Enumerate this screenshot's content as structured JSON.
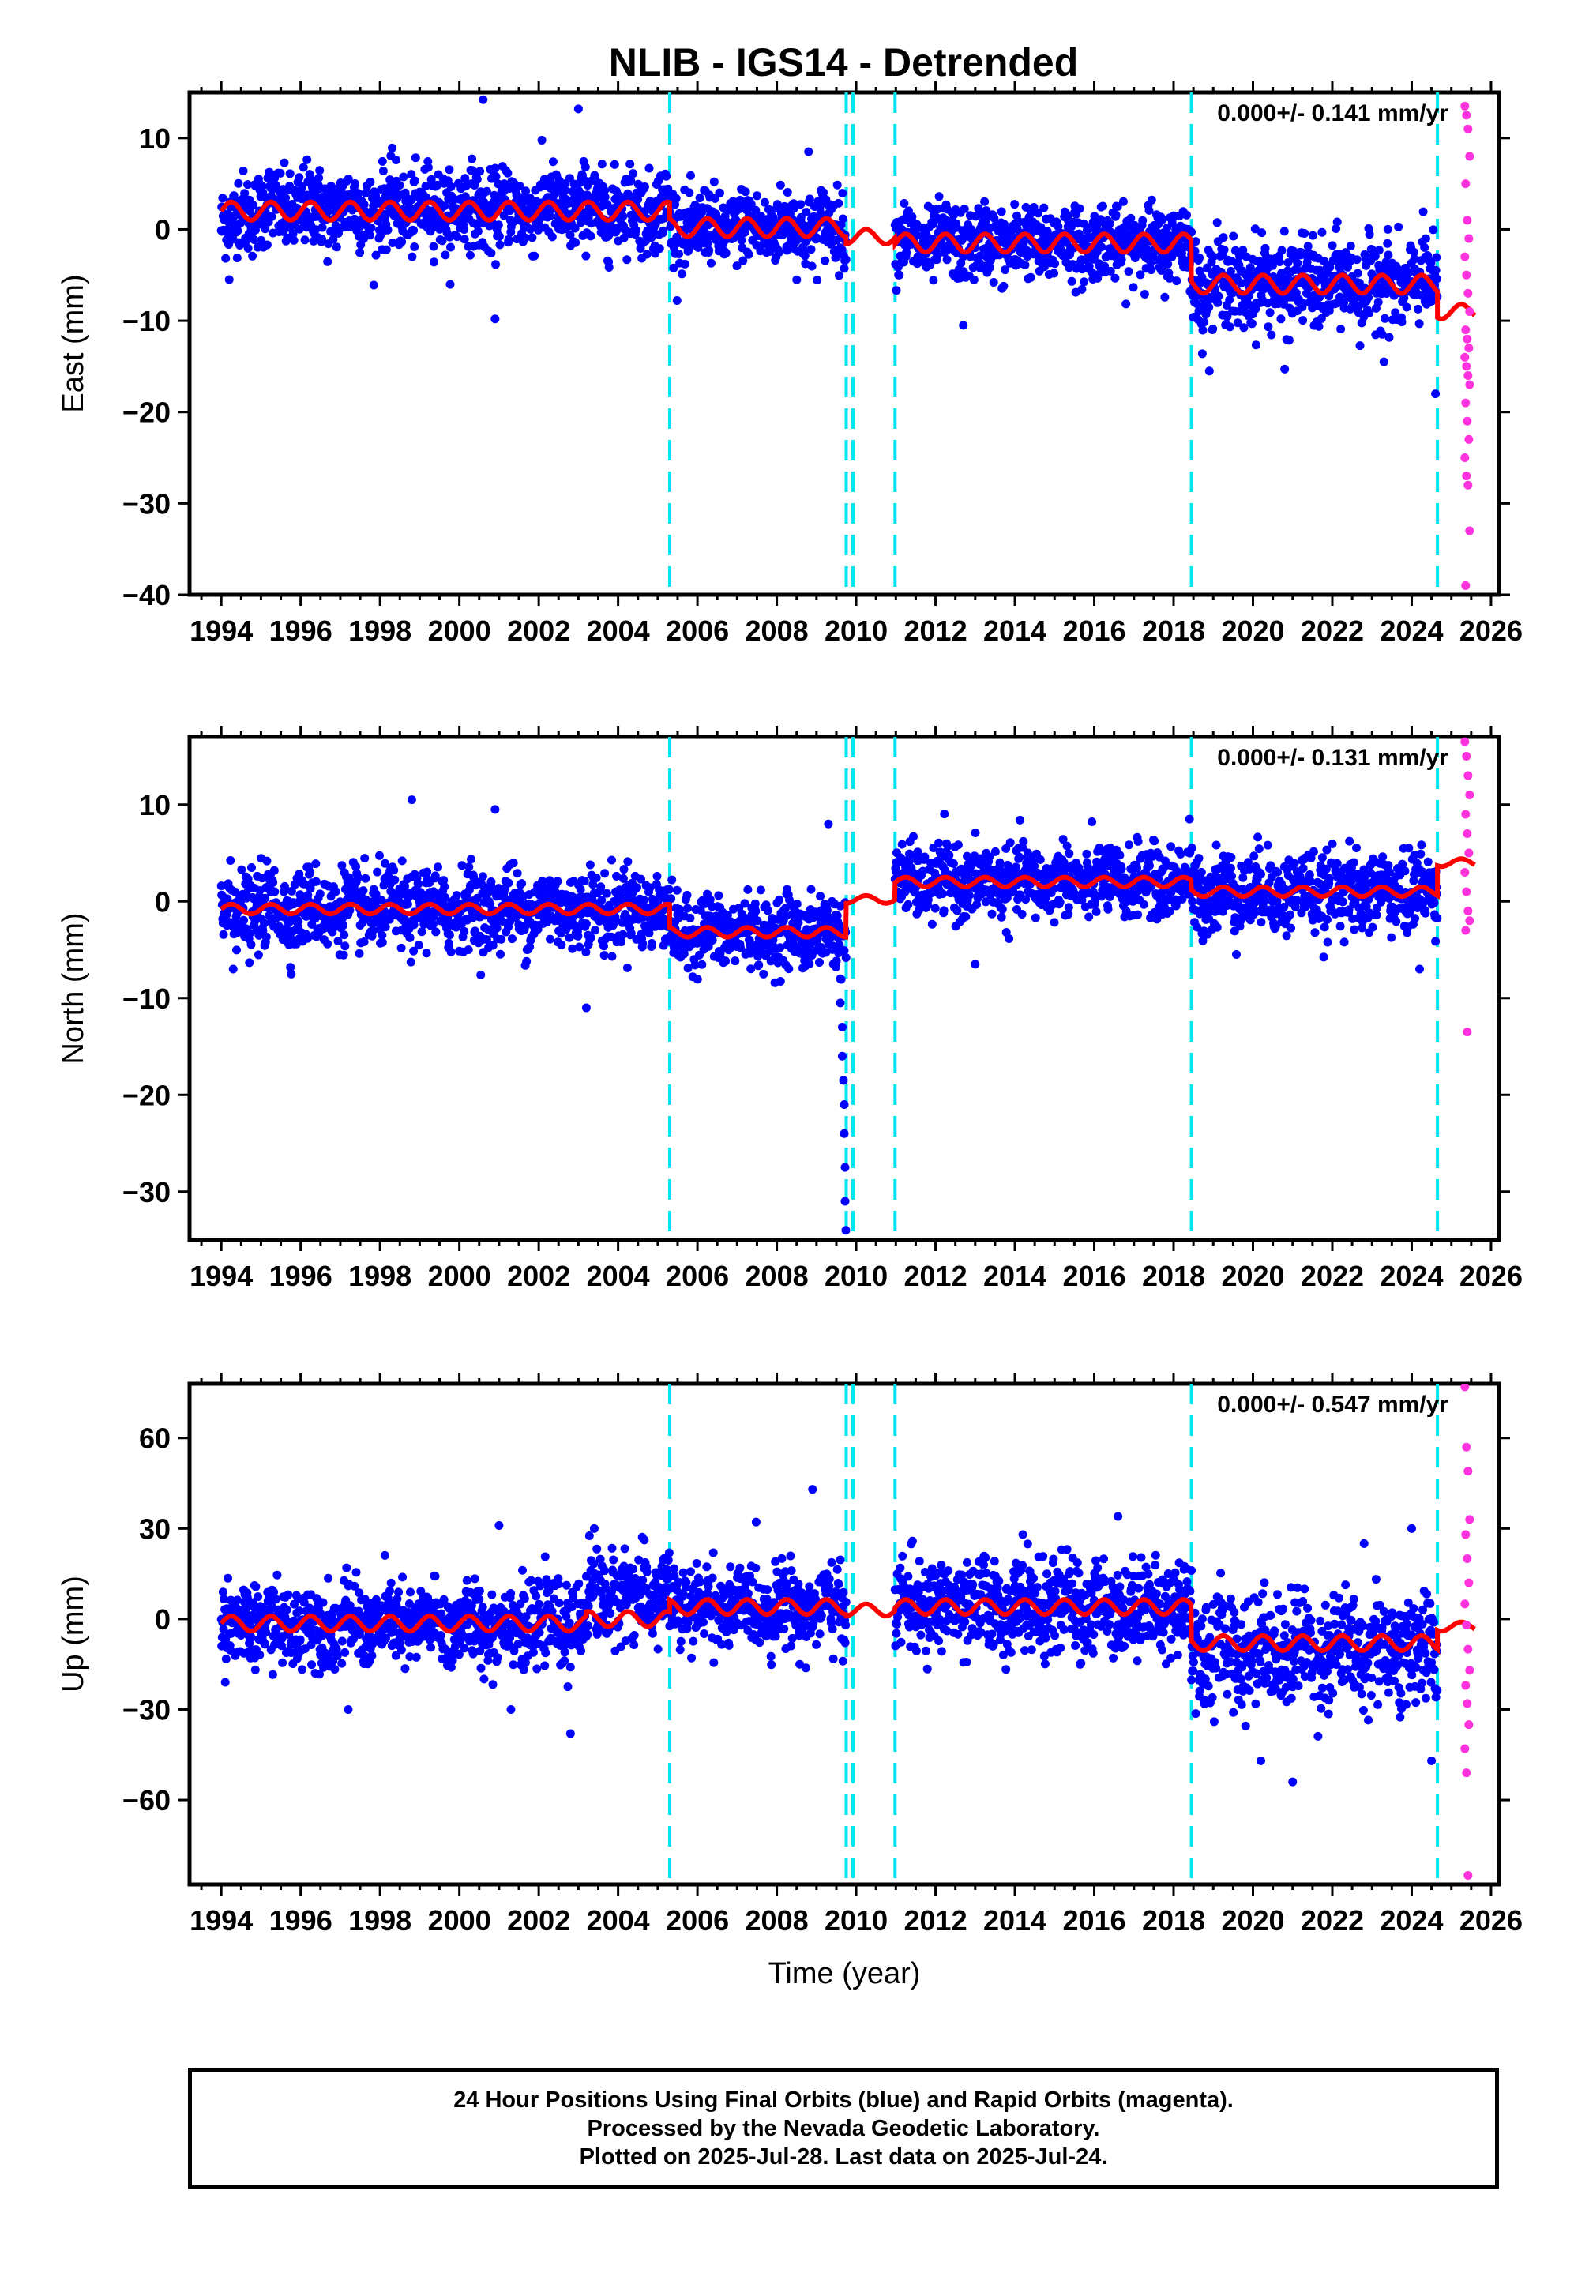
{
  "title": "NLIB - IGS14 - Detrended",
  "footer": {
    "lines": [
      "24 Hour Positions Using Final Orbits (blue) and Rapid Orbits (magenta).",
      "Processed by the Nevada Geodetic Laboratory.",
      "Plotted on 2025-Jul-28. Last data on 2025-Jul-24."
    ]
  },
  "colors": {
    "final": "#0000ff",
    "rapid": "#ff33dd",
    "model": "#ff0000",
    "events": "#00e5ee"
  },
  "chart_data": [
    {
      "type": "scatter",
      "panel": "east",
      "title": "NLIB - IGS14 - Detrended",
      "xlabel": "",
      "ylabel": "East (mm)",
      "xlim": [
        1993.2,
        2026.2
      ],
      "ylim": [
        -40,
        15
      ],
      "xticks": [
        1994,
        1996,
        1998,
        2000,
        2002,
        2004,
        2006,
        2008,
        2010,
        2012,
        2014,
        2016,
        2018,
        2020,
        2022,
        2024,
        2026
      ],
      "yticks": [
        10,
        0,
        -10,
        -20,
        -30,
        -40
      ],
      "annotation": "0.000+/- 0.141 mm/yr",
      "event_lines": [
        2005.3,
        2009.75,
        2009.92,
        2010.98,
        2018.45,
        2024.65
      ],
      "model_segments": [
        {
          "from": 1994.0,
          "to": 2005.3,
          "level": 2.0,
          "amp": 1.0
        },
        {
          "from": 2005.3,
          "to": 2009.75,
          "level": 0.2,
          "amp": 1.0
        },
        {
          "from": 2009.75,
          "to": 2010.98,
          "level": -0.8,
          "amp": 0.8
        },
        {
          "from": 2010.98,
          "to": 2018.45,
          "level": -1.5,
          "amp": 1.0
        },
        {
          "from": 2018.45,
          "to": 2024.65,
          "level": -6.0,
          "amp": 1.0
        },
        {
          "from": 2024.65,
          "to": 2025.6,
          "level": -9.0,
          "amp": 0.8
        }
      ],
      "final_segments": [
        {
          "from": 1994.0,
          "to": 1994.4,
          "level": 0.5,
          "sigma": 2.0
        },
        {
          "from": 1994.4,
          "to": 2005.3,
          "level": 2.2,
          "sigma": 2.2
        },
        {
          "from": 2005.3,
          "to": 2009.75,
          "level": 0.2,
          "sigma": 2.0
        },
        {
          "from": 2010.98,
          "to": 2018.45,
          "level": -1.5,
          "sigma": 2.0
        },
        {
          "from": 2018.45,
          "to": 2024.65,
          "level": -6.0,
          "sigma": 2.4
        }
      ],
      "outliers": [
        [
          1994.2,
          -5.5
        ],
        [
          2000.9,
          -9.8
        ],
        [
          2000.6,
          14.2
        ],
        [
          2003.0,
          13.2
        ],
        [
          2008.8,
          8.5
        ],
        [
          2012.7,
          -10.5
        ],
        [
          2020.8,
          -15.3
        ],
        [
          2023.3,
          -14.5
        ],
        [
          2024.6,
          -18.0
        ]
      ],
      "rapid": [
        [
          2025.4,
          13.5
        ],
        [
          2025.4,
          12.5
        ],
        [
          2025.4,
          11
        ],
        [
          2025.4,
          8
        ],
        [
          2025.4,
          5
        ],
        [
          2025.4,
          1
        ],
        [
          2025.4,
          -1
        ],
        [
          2025.4,
          -3
        ],
        [
          2025.4,
          -5
        ],
        [
          2025.4,
          -7
        ],
        [
          2025.4,
          -9
        ],
        [
          2025.4,
          -11
        ],
        [
          2025.4,
          -12
        ],
        [
          2025.4,
          -13
        ],
        [
          2025.4,
          -14
        ],
        [
          2025.4,
          -15
        ],
        [
          2025.4,
          -16
        ],
        [
          2025.4,
          -17
        ],
        [
          2025.4,
          -19
        ],
        [
          2025.4,
          -21
        ],
        [
          2025.4,
          -23
        ],
        [
          2025.4,
          -25
        ],
        [
          2025.4,
          -27
        ],
        [
          2025.4,
          -28
        ],
        [
          2025.4,
          -33
        ],
        [
          2025.4,
          -39
        ]
      ]
    },
    {
      "type": "scatter",
      "panel": "north",
      "title": "",
      "xlabel": "",
      "ylabel": "North (mm)",
      "xlim": [
        1993.2,
        2026.2
      ],
      "ylim": [
        -35,
        17
      ],
      "xticks": [
        1994,
        1996,
        1998,
        2000,
        2002,
        2004,
        2006,
        2008,
        2010,
        2012,
        2014,
        2016,
        2018,
        2020,
        2022,
        2024,
        2026
      ],
      "yticks": [
        10,
        0,
        -10,
        -20,
        -30
      ],
      "annotation": "0.000+/- 0.131 mm/yr",
      "event_lines": [
        2005.3,
        2009.75,
        2009.92,
        2010.98,
        2018.45,
        2024.65
      ],
      "model_segments": [
        {
          "from": 1994.0,
          "to": 2005.3,
          "level": -0.8,
          "amp": 0.5
        },
        {
          "from": 2005.3,
          "to": 2009.75,
          "level": -3.2,
          "amp": 0.5
        },
        {
          "from": 2009.75,
          "to": 2010.98,
          "level": 0.2,
          "amp": 0.4
        },
        {
          "from": 2010.98,
          "to": 2018.45,
          "level": 2.0,
          "amp": 0.5
        },
        {
          "from": 2018.45,
          "to": 2024.65,
          "level": 1.0,
          "amp": 0.5
        },
        {
          "from": 2024.65,
          "to": 2025.6,
          "level": 4.0,
          "amp": 0.4
        }
      ],
      "final_segments": [
        {
          "from": 1994.0,
          "to": 1994.4,
          "level": -1.0,
          "sigma": 2.0
        },
        {
          "from": 1994.4,
          "to": 2005.3,
          "level": -0.8,
          "sigma": 2.0
        },
        {
          "from": 2005.3,
          "to": 2009.75,
          "level": -3.2,
          "sigma": 1.8
        },
        {
          "from": 2010.98,
          "to": 2018.45,
          "level": 2.0,
          "sigma": 1.8
        },
        {
          "from": 2018.45,
          "to": 2024.65,
          "level": 1.0,
          "sigma": 2.0
        }
      ],
      "outliers": [
        [
          1994.3,
          -7.0
        ],
        [
          1998.8,
          10.5
        ],
        [
          2000.9,
          9.5
        ],
        [
          2003.2,
          -11.0
        ],
        [
          2009.3,
          8.0
        ],
        [
          2009.6,
          -8.0
        ],
        [
          2009.6,
          -10.5
        ],
        [
          2009.65,
          -13.0
        ],
        [
          2009.65,
          -16.0
        ],
        [
          2009.68,
          -18.5
        ],
        [
          2009.7,
          -21.0
        ],
        [
          2009.7,
          -24.0
        ],
        [
          2009.72,
          -27.5
        ],
        [
          2009.72,
          -31.0
        ],
        [
          2009.74,
          -34.0
        ],
        [
          2013.0,
          -6.5
        ],
        [
          2018.4,
          8.5
        ],
        [
          2024.2,
          -7.0
        ]
      ],
      "rapid": [
        [
          2025.4,
          16.5
        ],
        [
          2025.4,
          15
        ],
        [
          2025.4,
          13
        ],
        [
          2025.4,
          11
        ],
        [
          2025.4,
          9
        ],
        [
          2025.4,
          7
        ],
        [
          2025.4,
          5
        ],
        [
          2025.4,
          3
        ],
        [
          2025.4,
          1
        ],
        [
          2025.4,
          -1
        ],
        [
          2025.4,
          -2
        ],
        [
          2025.4,
          -3
        ],
        [
          2025.4,
          -13.5
        ]
      ]
    },
    {
      "type": "scatter",
      "panel": "up",
      "title": "",
      "xlabel": "Time (year)",
      "ylabel": "Up (mm)",
      "xlim": [
        1993.2,
        2026.2
      ],
      "ylim": [
        -88,
        78
      ],
      "xticks": [
        1994,
        1996,
        1998,
        2000,
        2002,
        2004,
        2006,
        2008,
        2010,
        2012,
        2014,
        2016,
        2018,
        2020,
        2022,
        2024,
        2026
      ],
      "yticks": [
        60,
        30,
        0,
        -30,
        -60
      ],
      "annotation": "0.000+/- 0.547 mm/yr",
      "event_lines": [
        2005.3,
        2009.75,
        2009.92,
        2010.98,
        2018.45,
        2024.65
      ],
      "model_segments": [
        {
          "from": 1994.0,
          "to": 2003.2,
          "level": -1.5,
          "amp": 2.5
        },
        {
          "from": 2003.2,
          "to": 2005.3,
          "level": 0.0,
          "amp": 2.5
        },
        {
          "from": 2005.3,
          "to": 2009.75,
          "level": 4.0,
          "amp": 2.5
        },
        {
          "from": 2009.75,
          "to": 2010.98,
          "level": 3.0,
          "amp": 2.0
        },
        {
          "from": 2010.98,
          "to": 2018.45,
          "level": 4.0,
          "amp": 2.5
        },
        {
          "from": 2018.45,
          "to": 2024.65,
          "level": -8.0,
          "amp": 2.5
        },
        {
          "from": 2024.65,
          "to": 2025.6,
          "level": -2.5,
          "amp": 1.5
        }
      ],
      "final_segments": [
        {
          "from": 1994.0,
          "to": 2003.2,
          "level": -2.0,
          "sigma": 6.5
        },
        {
          "from": 2003.2,
          "to": 2005.3,
          "level": 8.0,
          "sigma": 7.5
        },
        {
          "from": 2005.3,
          "to": 2009.75,
          "level": 4.0,
          "sigma": 6.5
        },
        {
          "from": 2010.98,
          "to": 2018.45,
          "level": 4.0,
          "sigma": 7.5
        },
        {
          "from": 2018.45,
          "to": 2024.65,
          "level": -10.0,
          "sigma": 9.0
        }
      ],
      "outliers": [
        [
          1997.2,
          -30.0
        ],
        [
          2001.3,
          -30.0
        ],
        [
          2001.0,
          31.0
        ],
        [
          2002.8,
          -38.0
        ],
        [
          2003.4,
          30.0
        ],
        [
          2008.9,
          43.0
        ],
        [
          2014.2,
          28.0
        ],
        [
          2016.6,
          34.0
        ],
        [
          2020.2,
          -47.0
        ],
        [
          2021.0,
          -54.0
        ],
        [
          2022.8,
          25.0
        ],
        [
          2024.0,
          30.0
        ],
        [
          2024.5,
          -47.0
        ]
      ],
      "rapid": [
        [
          2025.4,
          77
        ],
        [
          2025.4,
          57
        ],
        [
          2025.4,
          49
        ],
        [
          2025.4,
          33
        ],
        [
          2025.4,
          28
        ],
        [
          2025.4,
          20
        ],
        [
          2025.4,
          12
        ],
        [
          2025.4,
          5
        ],
        [
          2025.4,
          -2
        ],
        [
          2025.4,
          -10
        ],
        [
          2025.4,
          -17
        ],
        [
          2025.4,
          -22
        ],
        [
          2025.4,
          -28
        ],
        [
          2025.4,
          -35
        ],
        [
          2025.4,
          -43
        ],
        [
          2025.4,
          -51
        ],
        [
          2025.4,
          -85
        ]
      ]
    }
  ]
}
